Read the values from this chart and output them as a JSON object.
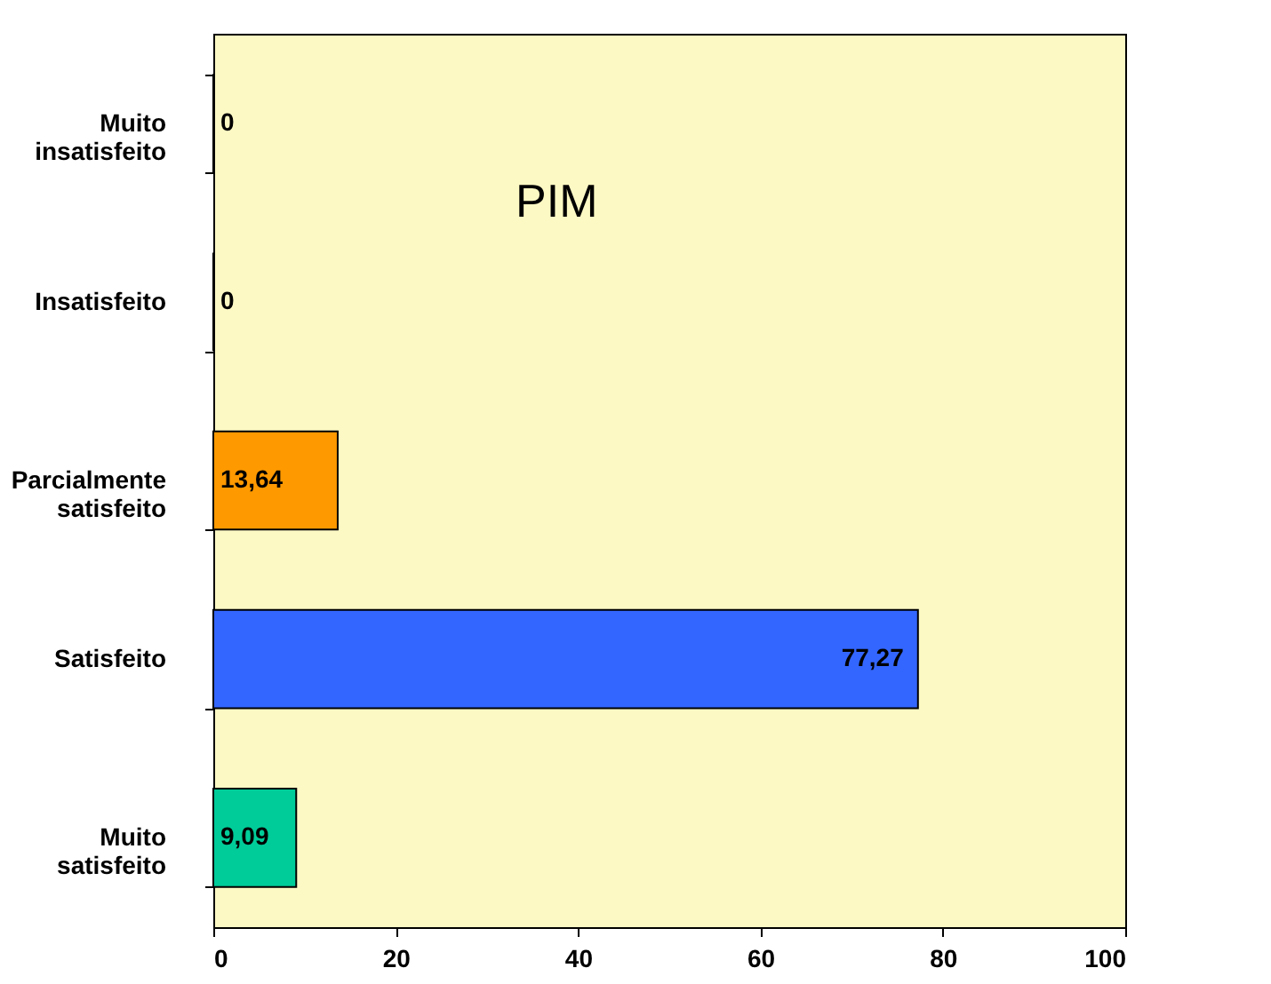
{
  "chart_data": {
    "type": "bar",
    "orientation": "horizontal",
    "title": "PIM",
    "categories": [
      "Muito insatisfeito",
      "Insatisfeito",
      "Parcialmente satisfeito",
      "Satisfeito",
      "Muito satisfeito"
    ],
    "values": [
      0,
      0,
      13.64,
      77.27,
      9.09
    ],
    "colors": [
      "#000000",
      "#000000",
      "#ff9900",
      "#3366ff",
      "#00cc99"
    ],
    "value_labels": [
      "0",
      "0",
      "13,64",
      "77,27",
      "9,09"
    ],
    "xlim": [
      0,
      100
    ],
    "xticks": [
      0,
      20,
      40,
      60,
      80,
      100
    ],
    "grid": false
  }
}
